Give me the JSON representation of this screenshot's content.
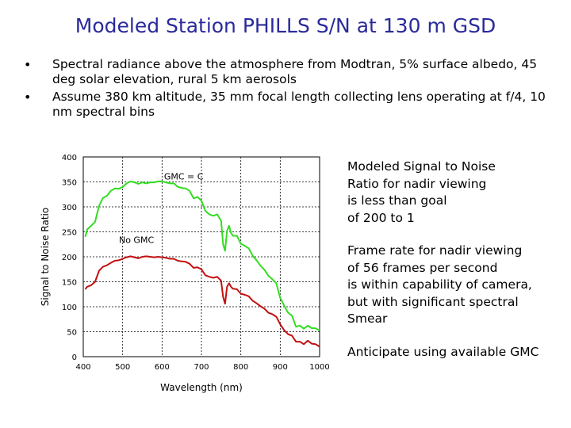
{
  "slide": {
    "title": "Modeled Station PHILLS S/N at 130 m GSD",
    "bullets": [
      "Spectral radiance above the atmosphere from Modtran, 5% surface albedo, 45 deg solar elevation, rural 5 km aerosols",
      "Assume 380 km altitude, 35 mm focal length collecting lens operating at f/4, 10 nm spectral bins"
    ],
    "bullet_marker": "•",
    "notes": [
      "Modeled Signal to Noise\nRatio for nadir viewing\nis less than goal\nof 200 to 1",
      "Frame rate for nadir viewing\nof 56 frames per second\nis within capability of camera,\nbut with significant spectral\nSmear",
      "Anticipate using available GMC"
    ]
  },
  "chart_data": {
    "type": "line",
    "title": "",
    "xlabel": "Wavelength  (nm)",
    "ylabel": "Signal to Noise Ratio",
    "xlim": [
      400,
      1000
    ],
    "ylim": [
      0,
      400
    ],
    "xticks": [
      400,
      500,
      600,
      700,
      800,
      900,
      1000
    ],
    "yticks": [
      0,
      50,
      100,
      150,
      200,
      250,
      300,
      350,
      400
    ],
    "grid": true,
    "annotations": [
      {
        "text": "GMC = C",
        "x": 655,
        "y": 355
      },
      {
        "text": "No GMC",
        "x": 535,
        "y": 228
      }
    ],
    "series": [
      {
        "name": "GMC = C",
        "color": "#33dd22",
        "x": [
          405,
          410,
          420,
          430,
          440,
          450,
          460,
          470,
          480,
          490,
          500,
          510,
          520,
          530,
          540,
          550,
          560,
          570,
          580,
          590,
          600,
          610,
          620,
          630,
          640,
          650,
          660,
          670,
          680,
          690,
          700,
          710,
          720,
          730,
          740,
          750,
          755,
          760,
          765,
          770,
          775,
          780,
          790,
          800,
          810,
          820,
          830,
          840,
          850,
          860,
          870,
          880,
          890,
          900,
          910,
          920,
          930,
          940,
          950,
          960,
          970,
          980,
          990,
          1000
        ],
        "values": [
          240,
          255,
          262,
          270,
          302,
          318,
          322,
          332,
          337,
          336,
          340,
          347,
          351,
          349,
          346,
          349,
          347,
          349,
          349,
          351,
          351,
          349,
          347,
          347,
          340,
          338,
          337,
          332,
          317,
          320,
          312,
          292,
          285,
          282,
          285,
          272,
          225,
          212,
          252,
          262,
          248,
          242,
          242,
          226,
          222,
          217,
          202,
          193,
          182,
          174,
          162,
          155,
          147,
          118,
          102,
          88,
          82,
          60,
          62,
          56,
          62,
          57,
          57,
          52
        ]
      },
      {
        "name": "No GMC",
        "color": "#c41010",
        "x": [
          405,
          410,
          420,
          430,
          440,
          450,
          460,
          470,
          480,
          490,
          500,
          510,
          520,
          530,
          540,
          550,
          560,
          570,
          580,
          590,
          600,
          610,
          620,
          630,
          640,
          650,
          660,
          670,
          680,
          690,
          700,
          710,
          720,
          730,
          740,
          750,
          755,
          760,
          765,
          770,
          775,
          780,
          790,
          800,
          810,
          820,
          830,
          840,
          850,
          860,
          870,
          880,
          890,
          900,
          910,
          920,
          930,
          940,
          950,
          960,
          970,
          980,
          990,
          1000
        ],
        "values": [
          135,
          140,
          143,
          150,
          172,
          180,
          183,
          188,
          192,
          193,
          196,
          199,
          201,
          199,
          197,
          200,
          201,
          200,
          199,
          200,
          199,
          198,
          196,
          196,
          192,
          191,
          190,
          186,
          178,
          179,
          175,
          163,
          160,
          158,
          160,
          152,
          120,
          106,
          140,
          147,
          140,
          136,
          135,
          126,
          124,
          121,
          112,
          107,
          101,
          96,
          88,
          85,
          80,
          65,
          53,
          45,
          42,
          30,
          30,
          25,
          32,
          26,
          25,
          20
        ]
      }
    ]
  }
}
